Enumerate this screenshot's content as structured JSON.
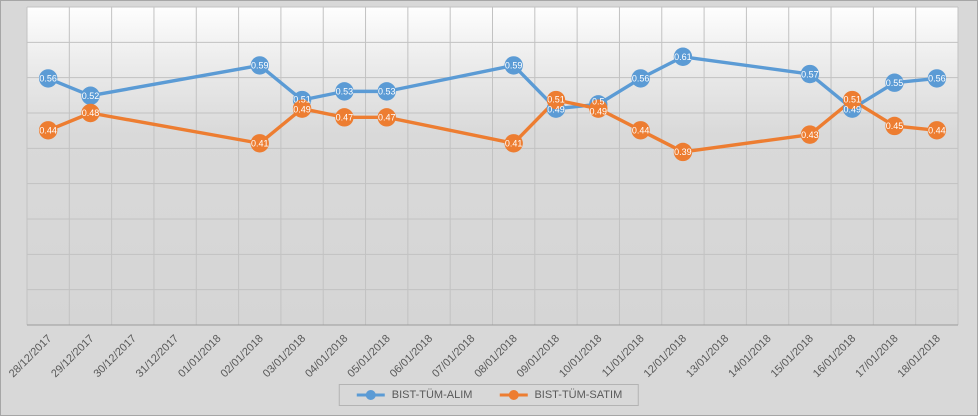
{
  "chart_data": {
    "type": "line",
    "title": "",
    "categories": [
      "28/12/2017",
      "29/12/2017",
      "30/12/2017",
      "31/12/2017",
      "01/01/2018",
      "02/01/2018",
      "03/01/2018",
      "04/01/2018",
      "05/01/2018",
      "06/01/2018",
      "07/01/2018",
      "08/01/2018",
      "09/01/2018",
      "10/01/2018",
      "11/01/2018",
      "12/01/2018",
      "13/01/2018",
      "14/01/2018",
      "15/01/2018",
      "16/01/2018",
      "17/01/2018",
      "18/01/2018"
    ],
    "series": [
      {
        "name": "BIST-TÜM-ALIM",
        "color": "#5b9bd5",
        "values": [
          0.56,
          0.52,
          null,
          null,
          null,
          0.59,
          0.51,
          0.53,
          0.53,
          null,
          null,
          0.59,
          0.49,
          0.5,
          0.56,
          0.61,
          null,
          null,
          0.57,
          0.49,
          0.55,
          0.56
        ]
      },
      {
        "name": "BIST-TÜM-SATIM",
        "color": "#ed7d31",
        "values": [
          0.44,
          0.48,
          null,
          null,
          null,
          0.41,
          0.49,
          0.47,
          0.47,
          null,
          null,
          0.41,
          0.51,
          0.49,
          0.44,
          0.39,
          null,
          null,
          0.43,
          0.51,
          0.45,
          0.44
        ]
      }
    ],
    "ylim": [
      -0.01,
      0.725
    ],
    "grid": true,
    "legend_position": "bottom",
    "marker_labels": true,
    "connect_gaps": true
  },
  "colors": {
    "background": "#d8d8d8",
    "gridline": "#c2c2c2",
    "axis_line": "#9b9b9b",
    "axis_text": "#595959",
    "data_label_text": "#ffffff"
  },
  "legend": {
    "items": [
      {
        "label": "BIST-TÜM-ALIM"
      },
      {
        "label": "BIST-TÜM-SATIM"
      }
    ]
  }
}
